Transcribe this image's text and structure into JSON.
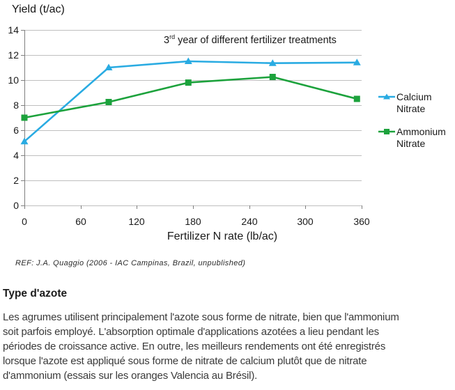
{
  "chart_data": {
    "type": "line",
    "title": "3rd year of different fertilizer treatments",
    "title_parts": {
      "base": "3",
      "sup": "rd",
      "rest": " year of different fertilizer treatments"
    },
    "ylabel": "Yield (t/ac)",
    "xlabel": "Fertilizer N rate (lb/ac)",
    "xlim": [
      0,
      360
    ],
    "ylim": [
      0,
      14
    ],
    "xticks": [
      0,
      60,
      120,
      180,
      240,
      300,
      360
    ],
    "yticks": [
      0,
      2,
      4,
      6,
      8,
      10,
      12,
      14
    ],
    "grid": true,
    "grid_color": "#BFBFBF",
    "axis_color": "#7F7F7F",
    "legend_position": "right",
    "series": [
      {
        "name": "Calcium Nitrate",
        "marker": "triangle",
        "color": "#29ABE2",
        "x": [
          0,
          90,
          175,
          265,
          355
        ],
        "values": [
          5.1,
          11.0,
          11.5,
          11.35,
          11.4
        ]
      },
      {
        "name": "Ammonium Nitrate",
        "marker": "square",
        "color": "#1CA23C",
        "x": [
          0,
          90,
          175,
          265,
          355
        ],
        "values": [
          7.0,
          8.25,
          9.8,
          10.25,
          8.5
        ]
      }
    ]
  },
  "ref_note": "REF: J.A. Quaggio (2006 - IAC Campinas, Brazil, unpublished)",
  "section": {
    "heading": "Type d'azote",
    "paragraph_lines": [
      "Les agrumes utilisent principalement l'azote sous forme de nitrate, bien que l'ammonium",
      "soit parfois employé. L'absorption optimale d'applications azotées a lieu pendant les",
      "périodes de croissance active. En outre, les meilleurs rendements ont été enregistrés",
      "lorsque l'azote est appliqué sous forme de nitrate de calcium plutôt que de nitrate",
      "d'ammonium (essais sur les oranges Valencia au Brésil)."
    ]
  }
}
